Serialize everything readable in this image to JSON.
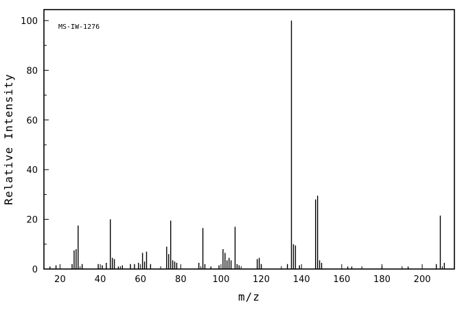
{
  "colors": {
    "line": "#000000",
    "background": "#ffffff"
  },
  "chart_data": {
    "type": "bar",
    "subtype": "mass-spectrum-stem-plot",
    "title_annotation": "MS-IW-1276",
    "xlabel": "m/z",
    "ylabel": "Relative Intensity",
    "xlim": [
      12,
      216
    ],
    "ylim": [
      0,
      100
    ],
    "xticks_major": [
      20,
      40,
      60,
      80,
      100,
      120,
      140,
      160,
      180,
      200
    ],
    "xticks_minor_step": 10,
    "xticks_minor_start": 20,
    "xticks_minor_end": 210,
    "yticks_major": [
      0,
      20,
      40,
      60,
      80,
      100
    ],
    "yticks_minor_step": 10,
    "grid": "off",
    "legend": "none",
    "peaks": [
      [
        15,
        1
      ],
      [
        18,
        1.5
      ],
      [
        26,
        2
      ],
      [
        27,
        7.5
      ],
      [
        28,
        8
      ],
      [
        29,
        17.5
      ],
      [
        31,
        2
      ],
      [
        39,
        2
      ],
      [
        41,
        1.5
      ],
      [
        43,
        2.5
      ],
      [
        45,
        20
      ],
      [
        46,
        4.5
      ],
      [
        47,
        4
      ],
      [
        49,
        1
      ],
      [
        51,
        1.5
      ],
      [
        55,
        2
      ],
      [
        57,
        2
      ],
      [
        59,
        2.5
      ],
      [
        61,
        6.5
      ],
      [
        62,
        3
      ],
      [
        63,
        7
      ],
      [
        65,
        2
      ],
      [
        73,
        9
      ],
      [
        74,
        6
      ],
      [
        75,
        19.5
      ],
      [
        76,
        3.5
      ],
      [
        77,
        3
      ],
      [
        78,
        2.5
      ],
      [
        89,
        2.5
      ],
      [
        91,
        16.5
      ],
      [
        92,
        2
      ],
      [
        95,
        1
      ],
      [
        99,
        1.5
      ],
      [
        101,
        8
      ],
      [
        102,
        6.5
      ],
      [
        103,
        3.5
      ],
      [
        104,
        4.5
      ],
      [
        105,
        3.5
      ],
      [
        107,
        17
      ],
      [
        108,
        2
      ],
      [
        109,
        1.5
      ],
      [
        118,
        4
      ],
      [
        119,
        4.5
      ],
      [
        120,
        2
      ],
      [
        133,
        2
      ],
      [
        135,
        100
      ],
      [
        136,
        10
      ],
      [
        137,
        9.5
      ],
      [
        139,
        1.5
      ],
      [
        147,
        28
      ],
      [
        148,
        29.5
      ],
      [
        149,
        3.5
      ],
      [
        150,
        2.5
      ],
      [
        163,
        1
      ],
      [
        165,
        1
      ],
      [
        180,
        1
      ],
      [
        193,
        1
      ],
      [
        207,
        2
      ],
      [
        209,
        21.5
      ],
      [
        211,
        2.5
      ]
    ]
  }
}
